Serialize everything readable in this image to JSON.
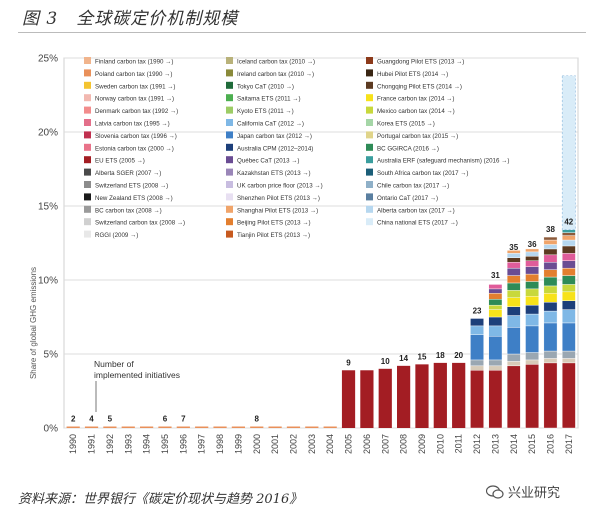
{
  "figure": {
    "title": "图 3　全球碳定价机制规模",
    "source": "资料来源：世界银行《碳定价现状与趋势 2016》",
    "watermark": "兴业研究",
    "watermark_icon": "wechat-icon"
  },
  "chart_data": {
    "type": "bar",
    "ylabel": "Share of global GHG emissions",
    "xlabel": "",
    "ylim": [
      0,
      25
    ],
    "yticks": [
      "0%",
      "5%",
      "10%",
      "15%",
      "20%",
      "25%"
    ],
    "grid": "horizontal",
    "categories": [
      "1990",
      "1991",
      "1992",
      "1993",
      "1994",
      "1995",
      "1996",
      "1997",
      "1998",
      "1999",
      "2000",
      "2001",
      "2002",
      "2003",
      "2004",
      "2005",
      "2006",
      "2007",
      "2008",
      "2009",
      "2010",
      "2011",
      "2012",
      "2013",
      "2014",
      "2015",
      "2016",
      "2017"
    ],
    "values": [
      0.1,
      0.1,
      0.1,
      0.1,
      0.1,
      0.1,
      0.1,
      0.1,
      0.1,
      0.1,
      0.1,
      0.1,
      0.1,
      0.1,
      0.1,
      3.9,
      3.9,
      4.0,
      4.2,
      4.3,
      4.4,
      4.4,
      7.4,
      9.8,
      11.7,
      11.9,
      12.9,
      13.4
    ],
    "segments": {
      "2012": [
        3.9,
        0.3,
        0.4,
        1.7,
        0.6,
        0.5
      ],
      "2013": [
        3.9,
        0.3,
        0.4,
        1.6,
        0.7,
        0.6,
        0.5,
        0.3,
        0.4,
        0.4,
        0.3,
        0.3
      ],
      "2014": [
        4.2,
        0.3,
        0.5,
        1.8,
        0.8,
        0.6,
        0.6,
        0.5,
        0.5,
        0.5,
        0.5,
        0.4,
        0.3,
        0.3,
        0.2
      ],
      "2015": [
        4.3,
        0.3,
        0.5,
        1.8,
        0.8,
        0.6,
        0.6,
        0.5,
        0.5,
        0.5,
        0.5,
        0.4,
        0.3,
        0.3,
        0.2
      ],
      "2016": [
        4.4,
        0.3,
        0.5,
        1.9,
        0.8,
        0.6,
        0.6,
        0.5,
        0.6,
        0.5,
        0.5,
        0.5,
        0.4,
        0.3,
        0.3,
        0.2
      ],
      "2017": [
        4.4,
        0.3,
        0.5,
        1.9,
        0.9,
        0.6,
        0.6,
        0.5,
        0.6,
        0.5,
        0.5,
        0.5,
        0.5,
        0.4,
        0.3,
        0.2,
        0.2
      ]
    },
    "china_national_ets_2017": 10.4,
    "bar_labels": {
      "1990": "2",
      "1991": "4",
      "1992": "5",
      "1995": "6",
      "1996": "7",
      "2000": "8",
      "2005": "9",
      "2007": "10",
      "2008": "14",
      "2009": "15",
      "2010": "18",
      "2011": "20",
      "2012": "23",
      "2013": "31",
      "2014": "35",
      "2015": "36",
      "2016": "38",
      "2017": "42"
    },
    "annotation": [
      "Number of",
      "implemented initiatives"
    ],
    "segment_colors": [
      "#a31d23",
      "#d8cbb8",
      "#9aa7b2",
      "#3e7fc6",
      "#7fb8e6",
      "#1d3f7a",
      "#f7e21a",
      "#c8d83c",
      "#2e8b57",
      "#e37f2f",
      "#6a4c93",
      "#e05c9a",
      "#5c3a21",
      "#b6d7ef",
      "#f0a46a",
      "#8c5a3a",
      "#3a9e9e"
    ],
    "china_color": "#d9ecf8",
    "small_bar_color": "#e9905a",
    "legend": {
      "columns": [
        [
          {
            "label": "Finland carbon tax (1990 →)",
            "color": "#f1b48c"
          },
          {
            "label": "Poland carbon tax (1990 →)",
            "color": "#e9905a"
          },
          {
            "label": "Sweden carbon tax (1991 →)",
            "color": "#f4c430"
          },
          {
            "label": "Norway carbon tax (1991 →)",
            "color": "#f2b8b0"
          },
          {
            "label": "Denmark carbon tax (1992 →)",
            "color": "#f28c8c"
          },
          {
            "label": "Latvia carbon tax (1995 →)",
            "color": "#e36f8a"
          },
          {
            "label": "Slovenia carbon tax (1996 →)",
            "color": "#c0304f"
          },
          {
            "label": "Estonia carbon tax (2000 →)",
            "color": "#e9738a"
          },
          {
            "label": "EU ETS (2005 →)",
            "color": "#a31d23"
          },
          {
            "label": "Alberta SGER (2007 →)",
            "color": "#4a4a4a"
          },
          {
            "label": "Switzerland ETS (2008 →)",
            "color": "#8c8c8c"
          },
          {
            "label": "New Zealand ETS (2008 →)",
            "color": "#1a1a1a"
          },
          {
            "label": "BC carbon tax (2008 →)",
            "color": "#9a9a9a"
          },
          {
            "label": "Switzerland carbon tax (2008 →)",
            "color": "#d0d0d0"
          },
          {
            "label": "RGGI (2009 →)",
            "color": "#e8e8e8"
          }
        ],
        [
          {
            "label": "Iceland carbon tax (2010 →)",
            "color": "#b9b27a"
          },
          {
            "label": "Ireland carbon tax (2010 →)",
            "color": "#8a8a3a"
          },
          {
            "label": "Tokyo CaT (2010 →)",
            "color": "#1f6b3a"
          },
          {
            "label": "Saitama ETS (2011 →)",
            "color": "#4caf50"
          },
          {
            "label": "Kyoto ETS (2011 →)",
            "color": "#9ccc65"
          },
          {
            "label": "California CaT (2012 →)",
            "color": "#7fb8e6"
          },
          {
            "label": "Japan carbon tax (2012 →)",
            "color": "#3e7fc6"
          },
          {
            "label": "Australia CPM (2012–2014)",
            "color": "#1d3f7a"
          },
          {
            "label": "Québec CaT (2013 →)",
            "color": "#6a4c93"
          },
          {
            "label": "Kazakhstan ETS (2013 →)",
            "color": "#9a86b8"
          },
          {
            "label": "UK carbon price floor (2013 →)",
            "color": "#c8bde0"
          },
          {
            "label": "Shenzhen Pilot ETS (2013 →)",
            "color": "#e8e0f2"
          },
          {
            "label": "Shanghai Pilot ETS (2013 →)",
            "color": "#f0a46a"
          },
          {
            "label": "Beijing Pilot ETS (2013 →)",
            "color": "#e37f2f"
          },
          {
            "label": "Tianjin Pilot ETS (2013 →)",
            "color": "#c75a1f"
          }
        ],
        [
          {
            "label": "Guangdong Pilot ETS (2013 →)",
            "color": "#8c3a1a"
          },
          {
            "label": "Hubei Pilot ETS (2014 →)",
            "color": "#3a2614"
          },
          {
            "label": "Chongqing Pilot ETS (2014 →)",
            "color": "#5c3a21"
          },
          {
            "label": "France carbon tax (2014 →)",
            "color": "#f7e21a"
          },
          {
            "label": "Mexico carbon tax (2014 →)",
            "color": "#c8d83c"
          },
          {
            "label": "Korea ETS (2015 →)",
            "color": "#a5d6a7"
          },
          {
            "label": "Portugal carbon tax (2015 →)",
            "color": "#e0d48a"
          },
          {
            "label": "BC GGIRCA (2016 →)",
            "color": "#2e8b57"
          },
          {
            "label": "Australia ERF (safeguard mechanism) (2016 →)",
            "color": "#3a9e9e"
          },
          {
            "label": "South Africa carbon tax (2017 →)",
            "color": "#1b5e78"
          },
          {
            "label": "Chile carbon tax (2017 →)",
            "color": "#8fb0c8"
          },
          {
            "label": "Ontario CaT (2017 →)",
            "color": "#5a7fa0"
          },
          {
            "label": "Alberta carbon tax (2017 →)",
            "color": "#b6d7ef"
          },
          {
            "label": "China national ETS (2017 →)",
            "color": "#d9ecf8"
          }
        ]
      ]
    }
  }
}
